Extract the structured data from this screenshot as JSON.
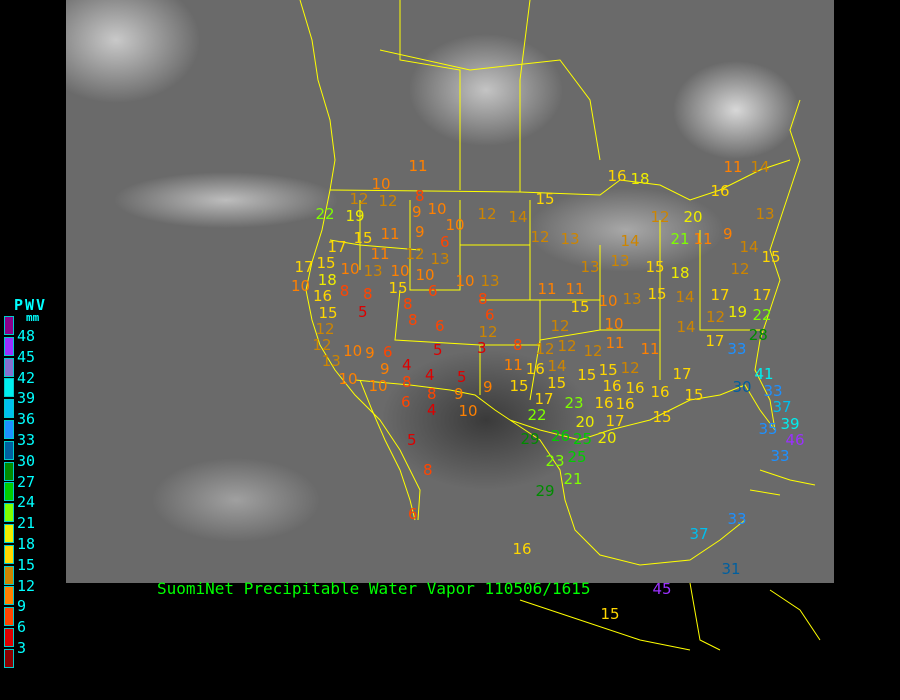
{
  "title": "SuomiNet Precipitable Water Vapor 110506/1615",
  "legend": {
    "title": "PWV",
    "unit": "mm",
    "ticks": [
      "48",
      "45",
      "42",
      "39",
      "36",
      "33",
      "30",
      "27",
      "24",
      "21",
      "18",
      "15",
      "12",
      "9",
      "6",
      "3"
    ],
    "colors": [
      "#8b008b",
      "#9b30ff",
      "#8470d0",
      "#00eeee",
      "#00bfee",
      "#1e90ff",
      "#005f9f",
      "#008b00",
      "#00cd00",
      "#7fff00",
      "#eeee00",
      "#ffd700",
      "#cd8500",
      "#ff8000",
      "#ff4500",
      "#dd0000",
      "#8b0000"
    ]
  },
  "stations": [
    11,
    10,
    8,
    12,
    12,
    9,
    10,
    22,
    19,
    12,
    14,
    15,
    16,
    18,
    11,
    14,
    16,
    12,
    20,
    13,
    17,
    15,
    11,
    9,
    10,
    6,
    12,
    13,
    14,
    21,
    11,
    9,
    14,
    11,
    12,
    13,
    17,
    15,
    10,
    13,
    10,
    10,
    10,
    13,
    13,
    13,
    15,
    18,
    12,
    15,
    10,
    18,
    8,
    8,
    15,
    8,
    6,
    11,
    8,
    11,
    10,
    13,
    15,
    14,
    17,
    17,
    16,
    15,
    5,
    8,
    12,
    6,
    12,
    6,
    15,
    10,
    12,
    14,
    12,
    19,
    22,
    12,
    8,
    12,
    12,
    12,
    11,
    11,
    17,
    33,
    28,
    13,
    10,
    9,
    9,
    6,
    5,
    3,
    10,
    10,
    4,
    8,
    4,
    5,
    9,
    8,
    6,
    4,
    11,
    16,
    14,
    15,
    15,
    15,
    15,
    12,
    16,
    16,
    16,
    17,
    15,
    9,
    10,
    17,
    22,
    23,
    20,
    16,
    16,
    17,
    20,
    15,
    41,
    30,
    33,
    37,
    29,
    26,
    25,
    35,
    39,
    46,
    33,
    5,
    23,
    25,
    8,
    29,
    21,
    6,
    16,
    37,
    33,
    45,
    15,
    31
  ]
}
